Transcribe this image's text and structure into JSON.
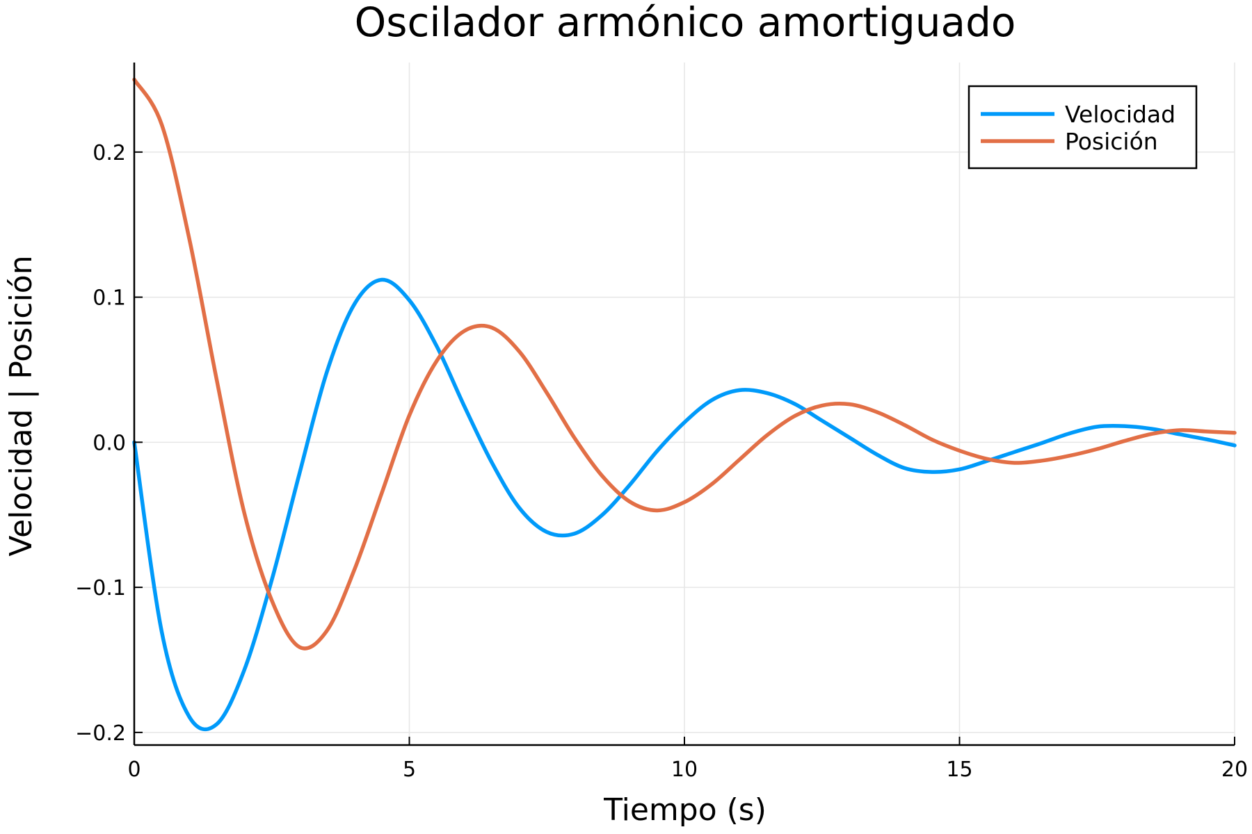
{
  "chart_data": {
    "type": "line",
    "title": "Oscilador armónico amortiguado",
    "xlabel": "Tiempo (s)",
    "ylabel": "Velocidad | Posición",
    "xlim": [
      0,
      20
    ],
    "ylim": [
      -0.2087,
      0.2617
    ],
    "xticks": [
      0,
      5,
      10,
      15,
      20
    ],
    "xtick_labels": [
      "0",
      "5",
      "10",
      "15",
      "20"
    ],
    "yticks": [
      -0.2,
      -0.1,
      0.0,
      0.1,
      0.2
    ],
    "ytick_labels": [
      "−0.2",
      "−0.1",
      "0.0",
      "0.1",
      "0.2"
    ],
    "grid": true,
    "legend_position": "top-right",
    "x": [
      0,
      0.5,
      1,
      1.5,
      2,
      2.5,
      3,
      3.5,
      4,
      4.5,
      5,
      5.5,
      6,
      6.5,
      7,
      7.5,
      8,
      8.5,
      9,
      9.5,
      10,
      10.5,
      11,
      11.5,
      12,
      12.5,
      13,
      13.5,
      14,
      14.5,
      15,
      15.5,
      16,
      16.5,
      17,
      17.5,
      18,
      18.5,
      19,
      19.5,
      20
    ],
    "series": [
      {
        "name": "Velocidad",
        "color": "#009AFA",
        "values": [
          0,
          -0.1307,
          -0.1892,
          -0.1943,
          -0.157,
          -0.0949,
          -0.022,
          0.0483,
          0.0951,
          0.112,
          0.0979,
          0.066,
          0.0248,
          -0.014,
          -0.0453,
          -0.0619,
          -0.063,
          -0.0503,
          -0.0297,
          -0.0062,
          0.0137,
          0.0291,
          0.0359,
          0.0339,
          0.0265,
          0.0149,
          0.0032,
          -0.0085,
          -0.0178,
          -0.0205,
          -0.0187,
          -0.0129,
          -0.0067,
          -0.0005,
          0.0061,
          0.0107,
          0.0111,
          0.0092,
          0.0055,
          0.0019,
          -0.0022
        ]
      },
      {
        "name": "Posición",
        "color": "#E26F46",
        "values": [
          0.25,
          0.2189,
          0.1403,
          0.0428,
          -0.0487,
          -0.109,
          -0.1411,
          -0.13,
          -0.088,
          -0.0349,
          0.0185,
          0.0562,
          0.0767,
          0.079,
          0.0625,
          0.034,
          0.0031,
          -0.023,
          -0.0408,
          -0.047,
          -0.0413,
          -0.0288,
          -0.012,
          0.0048,
          0.018,
          0.0253,
          0.0262,
          0.0208,
          0.0119,
          0.0018,
          -0.0058,
          -0.0115,
          -0.0142,
          -0.0127,
          -0.0093,
          -0.0047,
          0.0009,
          0.0058,
          0.0083,
          0.0074,
          0.0065
        ]
      }
    ]
  }
}
